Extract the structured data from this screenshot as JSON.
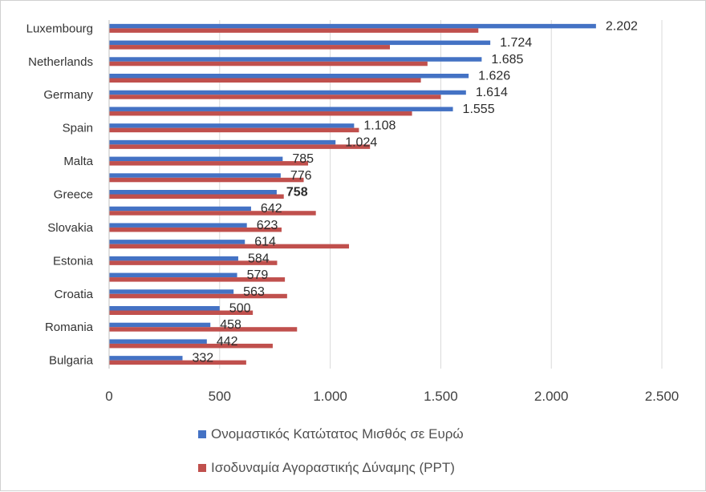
{
  "chart_data": {
    "type": "bar",
    "orientation": "horizontal",
    "category_labels": [
      "Luxembourg",
      "Netherlands",
      "Germany",
      "Spain",
      "Malta",
      "Greece",
      "Slovakia",
      "Estonia",
      "Croatia",
      "Romania",
      "Bulgaria"
    ],
    "labeled_bar_indices": [
      0,
      2,
      4,
      6,
      8,
      10,
      12,
      14,
      16,
      18,
      20
    ],
    "bar_count": 21,
    "series": [
      {
        "name": "Ονομαστικός Κατώτατος Μισθός σε Ευρώ",
        "color": "#4472C4",
        "values": [
          2202,
          1724,
          1685,
          1626,
          1614,
          1555,
          1108,
          1024,
          785,
          776,
          758,
          642,
          623,
          614,
          584,
          579,
          563,
          500,
          458,
          442,
          332
        ],
        "value_labels": [
          "2.202",
          "1.724",
          "1.685",
          "1.626",
          "1.614",
          "1.555",
          "1.108",
          "1.024",
          "785",
          "776",
          "758",
          "642",
          "623",
          "614",
          "584",
          "579",
          "563",
          "500",
          "458",
          "442",
          "332"
        ]
      },
      {
        "name": "Ισοδυναμία Αγοραστικής Δύναμης (PPT)",
        "color": "#C0504D",
        "values": [
          1670,
          1270,
          1440,
          1410,
          1500,
          1370,
          1130,
          1180,
          900,
          880,
          790,
          935,
          780,
          1085,
          760,
          795,
          805,
          650,
          850,
          740,
          620
        ]
      }
    ],
    "xlim": [
      0,
      2500
    ],
    "xticks": [
      0,
      500,
      1000,
      1500,
      2000,
      2500
    ],
    "xtick_labels": [
      "0",
      "500",
      "1.000",
      "1.500",
      "2.000",
      "2.500"
    ],
    "grid": "vertical",
    "legend_position": "bottom"
  }
}
